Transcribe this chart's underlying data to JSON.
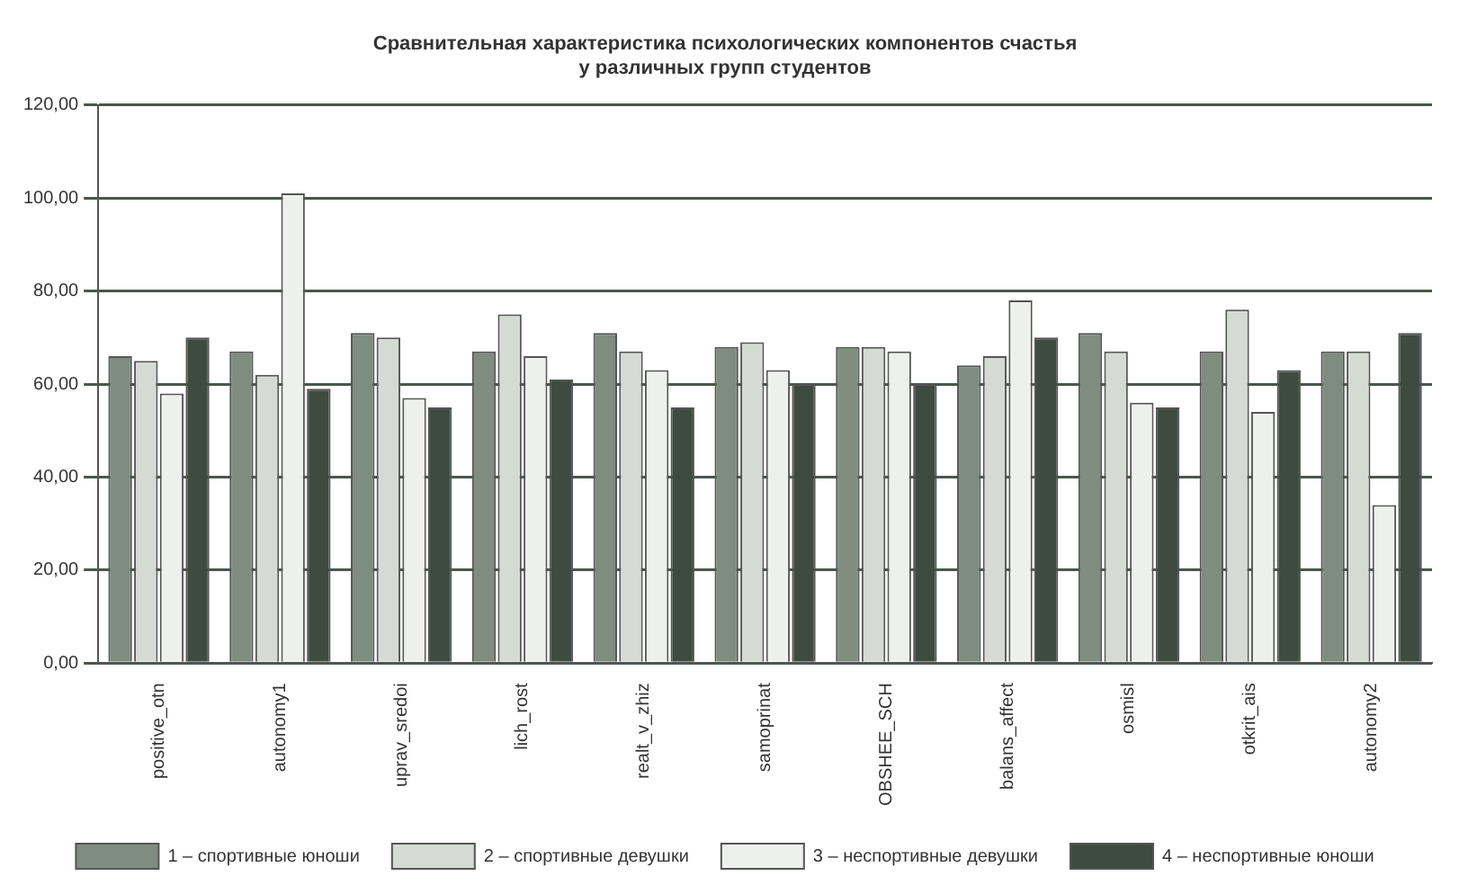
{
  "chart_data": {
    "type": "bar",
    "title": "Сравнительная характеристика психологических компонентов счастья\nу различных групп студентов",
    "categories": [
      "positive_otn",
      "autonomy1",
      "uprav_sredoi",
      "lich_rost",
      "realt_v_zhiz",
      "samoprinat",
      "OBSHEE_SCH",
      "balans_affect",
      "osmisl",
      "otkrit_ais",
      "autonomy2"
    ],
    "series": [
      {
        "name": "1 – спортивные юноши",
        "color": "#7f8c80",
        "values": [
          66,
          67,
          71,
          67,
          71,
          68,
          68,
          64,
          71,
          67,
          67
        ]
      },
      {
        "name": "2 – спортивные девушки",
        "color": "#d5dad5",
        "values": [
          65,
          62,
          70,
          75,
          67,
          69,
          68,
          66,
          67,
          76,
          67
        ]
      },
      {
        "name": "3 – неспортивные девушки",
        "color": "#eef0ee",
        "values": [
          58,
          101,
          57,
          66,
          63,
          63,
          67,
          78,
          56,
          54,
          34
        ]
      },
      {
        "name": "4 – неспортивные юноши",
        "color": "#3e4b41",
        "values": [
          70,
          59,
          55,
          61,
          55,
          60,
          60,
          70,
          55,
          63,
          71
        ]
      }
    ],
    "ylim": [
      0,
      120
    ],
    "yticks": [
      {
        "value": 0,
        "label": "0,00"
      },
      {
        "value": 20,
        "label": "20,00"
      },
      {
        "value": 40,
        "label": "40,00"
      },
      {
        "value": 60,
        "label": "60,00"
      },
      {
        "value": 80,
        "label": "80,00"
      },
      {
        "value": 100,
        "label": "100,00"
      },
      {
        "value": 120,
        "label": "120,00"
      }
    ],
    "grid": "y",
    "legend": "bottom"
  }
}
